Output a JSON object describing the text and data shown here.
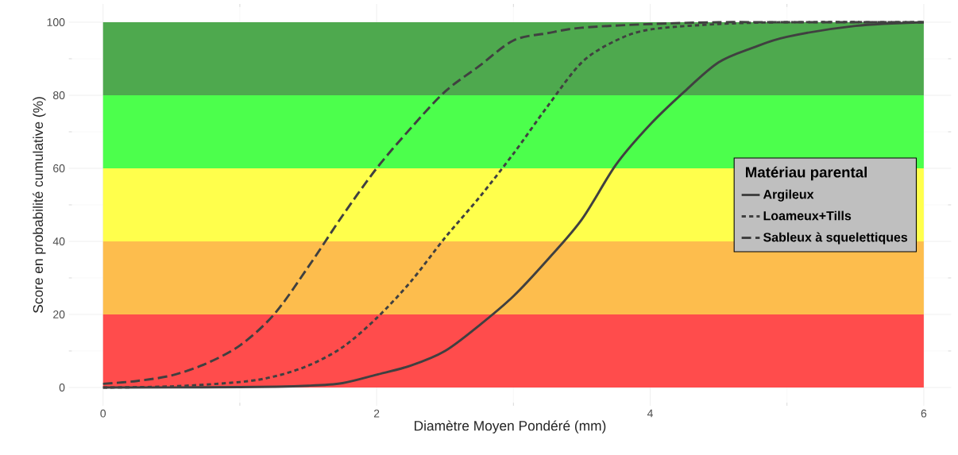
{
  "chart_data": {
    "type": "line",
    "xlabel": "Diamètre Moyen Pondéré (mm)",
    "ylabel": "Score en probabilité cumulative (%)",
    "legend_title": "Matériau parental",
    "xlim": [
      -0.25,
      6.2
    ],
    "ylim": [
      -5,
      105
    ],
    "xticks": [
      0,
      2,
      4,
      6
    ],
    "yticks": [
      0,
      20,
      40,
      60,
      80,
      100
    ],
    "grid": true,
    "legend": "right",
    "bands": [
      {
        "axis": "y",
        "from": 0,
        "to": 20,
        "color": "#ff4c4c"
      },
      {
        "axis": "y",
        "from": 20,
        "to": 40,
        "color": "#fdbd4d"
      },
      {
        "axis": "y",
        "from": 40,
        "to": 60,
        "color": "#ffff4c"
      },
      {
        "axis": "y",
        "from": 60,
        "to": 80,
        "color": "#4cff4c"
      },
      {
        "axis": "y",
        "from": 80,
        "to": 100,
        "color": "#4ea94e"
      }
    ],
    "series": [
      {
        "name": "Argileux",
        "color": "#404040",
        "line_style": "solid",
        "x": [
          0,
          1,
          1.5,
          1.75,
          2,
          2.25,
          2.5,
          2.75,
          3,
          3.25,
          3.5,
          3.75,
          4,
          4.25,
          4.5,
          4.75,
          5,
          5.5,
          6
        ],
        "values": [
          0,
          0.1,
          0.5,
          1.2,
          3.5,
          6,
          10,
          17,
          25,
          35,
          46,
          61,
          72,
          81,
          89,
          93,
          96,
          99,
          100
        ]
      },
      {
        "name": "Loameux+Tills",
        "color": "#404040",
        "line_style": "dotted",
        "x": [
          0,
          0.5,
          1,
          1.25,
          1.5,
          1.75,
          2,
          2.25,
          2.5,
          2.75,
          3,
          3.25,
          3.5,
          3.75,
          4,
          4.5,
          5,
          6
        ],
        "values": [
          0,
          0.3,
          1.5,
          3,
          6,
          11,
          19,
          29,
          41,
          52,
          64,
          77,
          89,
          95,
          98,
          99.5,
          100,
          100
        ]
      },
      {
        "name": "Sableux à squelettiques",
        "color": "#404040",
        "line_style": "dashed",
        "x": [
          0,
          0.25,
          0.5,
          0.75,
          1,
          1.25,
          1.5,
          1.75,
          2,
          2.25,
          2.5,
          2.75,
          3,
          3.25,
          3.5,
          4,
          4.5,
          5,
          6
        ],
        "values": [
          1,
          1.8,
          3.3,
          6.5,
          11.5,
          20,
          33,
          47,
          60,
          71,
          81,
          88,
          95,
          97,
          98.5,
          99.5,
          100,
          100,
          100
        ]
      }
    ]
  }
}
